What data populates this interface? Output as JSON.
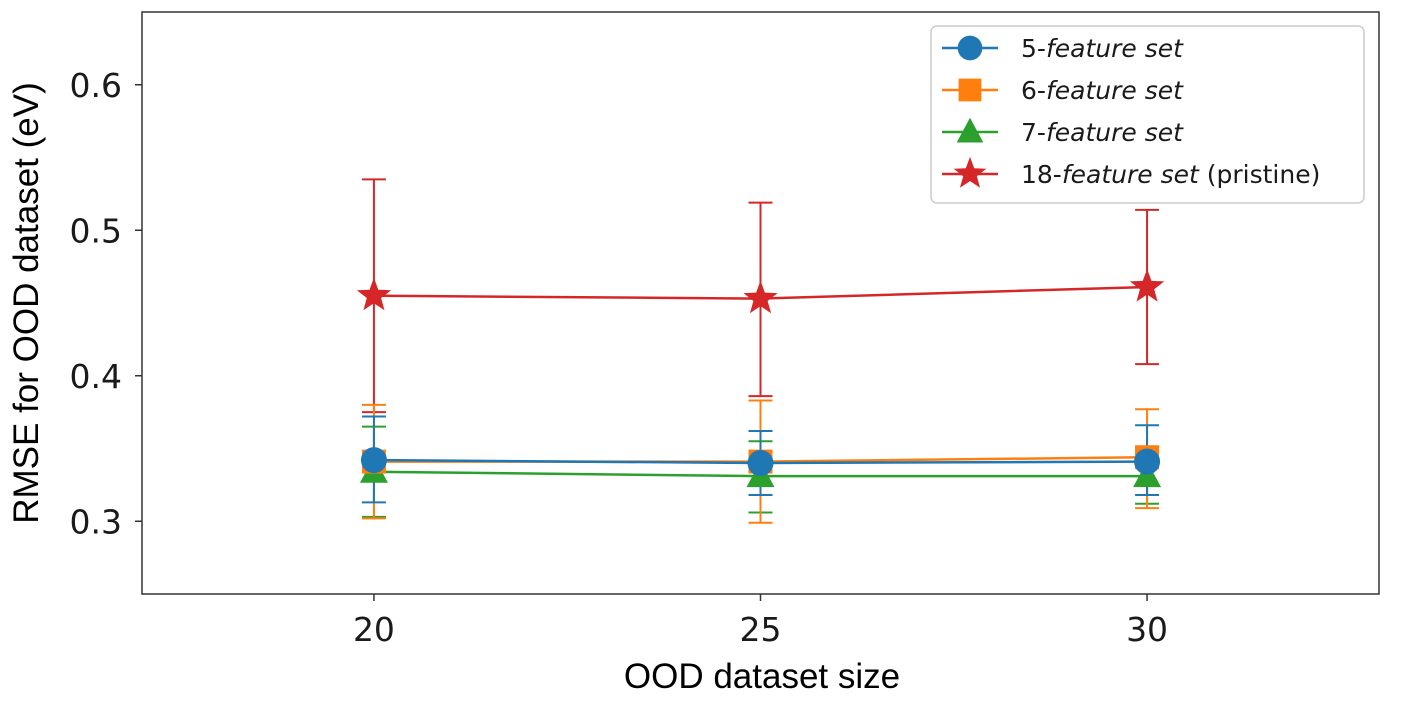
{
  "chart_data": {
    "type": "line",
    "title": "",
    "xlabel": "OOD dataset size",
    "ylabel": "RMSE for OOD dataset (eV)",
    "x": [
      20,
      25,
      30
    ],
    "x_ticks": [
      "20",
      "25",
      "30"
    ],
    "xlim": [
      17,
      33
    ],
    "ylim": [
      0.25,
      0.65
    ],
    "y_ticks": [
      "0.3",
      "0.4",
      "0.5",
      "0.6"
    ],
    "y_tick_values": [
      0.3,
      0.4,
      0.5,
      0.6
    ],
    "grid": false,
    "legend_position": "top-right",
    "series": [
      {
        "name": "5-feature set",
        "prefix": "5-",
        "italic": "feature set",
        "suffix": "",
        "color": "#1f77b4",
        "marker": "circle",
        "values": [
          0.342,
          0.34,
          0.341
        ],
        "err_low": [
          0.313,
          0.318,
          0.318
        ],
        "err_high": [
          0.372,
          0.362,
          0.366
        ]
      },
      {
        "name": "6-feature set",
        "prefix": "6-",
        "italic": "feature set",
        "suffix": "",
        "color": "#ff7f0e",
        "marker": "square",
        "values": [
          0.341,
          0.341,
          0.344
        ],
        "err_low": [
          0.302,
          0.299,
          0.309
        ],
        "err_high": [
          0.38,
          0.383,
          0.377
        ]
      },
      {
        "name": "7-feature set",
        "prefix": "7-",
        "italic": "feature set",
        "suffix": "",
        "color": "#2ca02c",
        "marker": "triangle",
        "values": [
          0.334,
          0.331,
          0.331
        ],
        "err_low": [
          0.303,
          0.306,
          0.312
        ],
        "err_high": [
          0.365,
          0.355,
          0.351
        ]
      },
      {
        "name": "18-feature set (pristine)",
        "prefix": "18-",
        "italic": "feature set",
        "suffix": " (pristine)",
        "color": "#d62728",
        "marker": "star",
        "values": [
          0.455,
          0.453,
          0.461
        ],
        "err_low": [
          0.375,
          0.386,
          0.408
        ],
        "err_high": [
          0.535,
          0.519,
          0.514
        ]
      }
    ]
  }
}
